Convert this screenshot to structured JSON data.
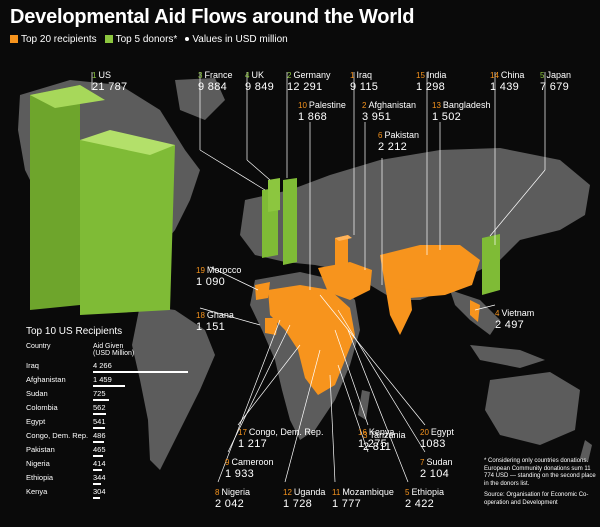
{
  "title": "Developmental Aid Flows around the World",
  "legend": {
    "recipients": "Top 20 recipients",
    "donors": "Top 5 donors*",
    "units": "Values in USD million"
  },
  "colors": {
    "recipient": "#f7941d",
    "donor": "#8cc63f",
    "land": "#5c5c5c",
    "background": "#0a0a0a"
  },
  "donors": [
    {
      "rank": "1",
      "country": "US",
      "value": "21 787"
    },
    {
      "rank": "2",
      "country": "Germany",
      "value": "12 291"
    },
    {
      "rank": "3",
      "country": "France",
      "value": "9 884"
    },
    {
      "rank": "4",
      "country": "UK",
      "value": "9 849"
    },
    {
      "rank": "5",
      "country": "Japan",
      "value": "7 679"
    }
  ],
  "recipients": [
    {
      "rank": "1",
      "country": "Iraq",
      "value": "9 115"
    },
    {
      "rank": "2",
      "country": "Afghanistan",
      "value": "3 951"
    },
    {
      "rank": "3",
      "country": "Tanzania",
      "value": "2 811"
    },
    {
      "rank": "4",
      "country": "Vietnam",
      "value": "2 497"
    },
    {
      "rank": "5",
      "country": "Ethiopia",
      "value": "2 422"
    },
    {
      "rank": "6",
      "country": "Pakistan",
      "value": "2 212"
    },
    {
      "rank": "7",
      "country": "Sudan",
      "value": "2 104"
    },
    {
      "rank": "8",
      "country": "Nigeria",
      "value": "2 042"
    },
    {
      "rank": "9",
      "country": "Cameroon",
      "value": "1 933"
    },
    {
      "rank": "10",
      "country": "Palestine",
      "value": "1 868"
    },
    {
      "rank": "11",
      "country": "Mozambique",
      "value": "1 777"
    },
    {
      "rank": "12",
      "country": "Uganda",
      "value": "1 728"
    },
    {
      "rank": "13",
      "country": "Bangladesh",
      "value": "1 502"
    },
    {
      "rank": "14",
      "country": "China",
      "value": "1 439"
    },
    {
      "rank": "15",
      "country": "India",
      "value": "1 298"
    },
    {
      "rank": "16",
      "country": "Kenya",
      "value": "1 275"
    },
    {
      "rank": "17",
      "country": "Congo, Dem. Rep.",
      "value": "1 217"
    },
    {
      "rank": "18",
      "country": "Ghana",
      "value": "1 151"
    },
    {
      "rank": "19",
      "country": "Morocco",
      "value": "1 090"
    },
    {
      "rank": "20",
      "country": "Egypt",
      "value": "1083"
    }
  ],
  "us_table": {
    "title": "Top 10 US Recipients",
    "col_country": "Country",
    "col_aid_line1": "Aid Given",
    "col_aid_line2": "(USD Million)",
    "rows": [
      {
        "country": "Iraq",
        "value": 4266,
        "label": "4 266"
      },
      {
        "country": "Afghanistan",
        "value": 1459,
        "label": "1 459"
      },
      {
        "country": "Sudan",
        "value": 725,
        "label": "725"
      },
      {
        "country": "Colombia",
        "value": 562,
        "label": "562"
      },
      {
        "country": "Egypt",
        "value": 541,
        "label": "541"
      },
      {
        "country": "Congo, Dem. Rep.",
        "value": 486,
        "label": "486"
      },
      {
        "country": "Pakistan",
        "value": 465,
        "label": "465"
      },
      {
        "country": "Nigeria",
        "value": 414,
        "label": "414"
      },
      {
        "country": "Ethiopia",
        "value": 344,
        "label": "344"
      },
      {
        "country": "Kenya",
        "value": 304,
        "label": "304"
      }
    ]
  },
  "note": "* Considering only countries donations. European Community donations sum 11 774 USD — standing on the second place in the donors list.",
  "source": "Source: Organisation for Economic Co-operation and Development"
}
